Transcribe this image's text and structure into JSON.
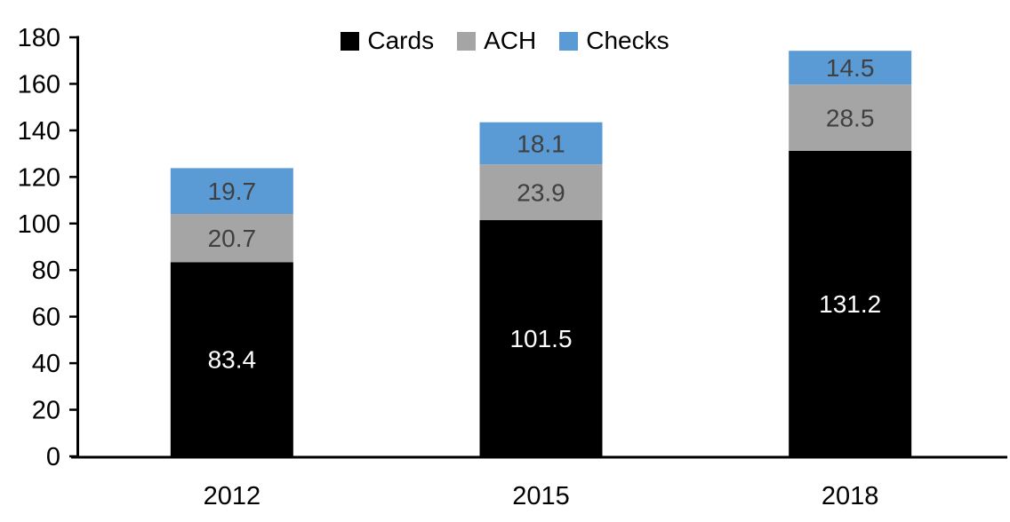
{
  "chart_data": {
    "type": "bar",
    "stacked": true,
    "title": "",
    "xlabel": "",
    "ylabel": "",
    "categories": [
      "2012",
      "2015",
      "2018"
    ],
    "series": [
      {
        "name": "Cards",
        "color": "#000000",
        "label_color": "#ffffff",
        "values": [
          83.4,
          101.5,
          131.2
        ]
      },
      {
        "name": "ACH",
        "color": "#A5A5A5",
        "label_color": "#404040",
        "values": [
          20.7,
          23.9,
          28.5
        ]
      },
      {
        "name": "Checks",
        "color": "#5B9BD5",
        "label_color": "#404040",
        "values": [
          19.7,
          18.1,
          14.5
        ]
      }
    ],
    "ylim": [
      0,
      180
    ],
    "ytick_step": 20,
    "yticks": [
      "0",
      "20",
      "40",
      "60",
      "80",
      "100",
      "120",
      "140",
      "160",
      "180"
    ],
    "legend_position": "top",
    "grid": false,
    "axis_color": "#000000",
    "tick_label_color": "#000000"
  }
}
